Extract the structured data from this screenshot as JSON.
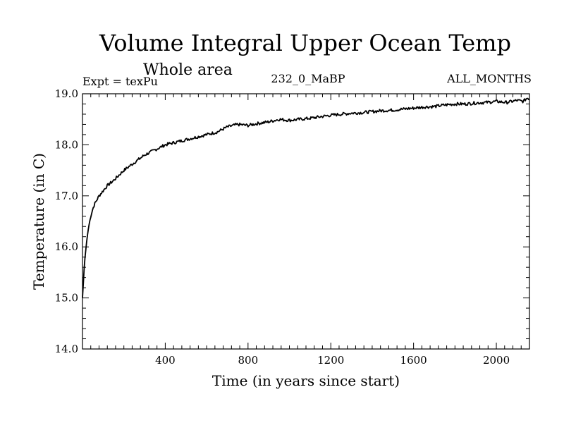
{
  "chart_data": {
    "type": "line",
    "title": "Volume Integral Upper Ocean Temp",
    "subtitle": "Whole area",
    "left_label": "Expt = texPu",
    "center_label": "232_0_MaBP",
    "right_label": "ALL_MONTHS",
    "xlabel": "Time (in years since start)",
    "ylabel": "Temperature (in C)",
    "xlim": [
      0,
      2160
    ],
    "ylim": [
      14.0,
      19.0
    ],
    "x_ticks": [
      400,
      800,
      1200,
      1600,
      2000
    ],
    "x_tick_labels": [
      "400",
      "800",
      "1200",
      "1600",
      "2000"
    ],
    "y_ticks": [
      14.0,
      15.0,
      16.0,
      17.0,
      18.0,
      19.0
    ],
    "y_tick_labels": [
      "14.0",
      "15.0",
      "16.0",
      "17.0",
      "18.0",
      "19.0"
    ],
    "grid": false,
    "series": [
      {
        "name": "Volume integral upper ocean temperature",
        "color": "#000000",
        "x": [
          0,
          10,
          20,
          30,
          40,
          50,
          60,
          80,
          100,
          120,
          150,
          200,
          250,
          300,
          350,
          400,
          450,
          500,
          550,
          600,
          650,
          700,
          750,
          800,
          850,
          900,
          950,
          1000,
          1050,
          1100,
          1150,
          1200,
          1250,
          1300,
          1350,
          1400,
          1450,
          1500,
          1550,
          1600,
          1650,
          1700,
          1750,
          1800,
          1850,
          1900,
          1950,
          2000,
          2050,
          2100,
          2130,
          2150,
          2160
        ],
        "values": [
          15.0,
          15.7,
          16.1,
          16.4,
          16.6,
          16.75,
          16.85,
          17.0,
          17.1,
          17.2,
          17.3,
          17.5,
          17.65,
          17.8,
          17.9,
          18.0,
          18.05,
          18.1,
          18.15,
          18.2,
          18.25,
          18.35,
          18.4,
          18.38,
          18.42,
          18.45,
          18.5,
          18.48,
          18.5,
          18.52,
          18.55,
          18.58,
          18.6,
          18.62,
          18.63,
          18.65,
          18.67,
          18.68,
          18.7,
          18.72,
          18.74,
          18.75,
          18.78,
          18.8,
          18.8,
          18.82,
          18.83,
          18.85,
          18.83,
          18.87,
          18.85,
          18.92,
          18.9
        ]
      }
    ]
  }
}
